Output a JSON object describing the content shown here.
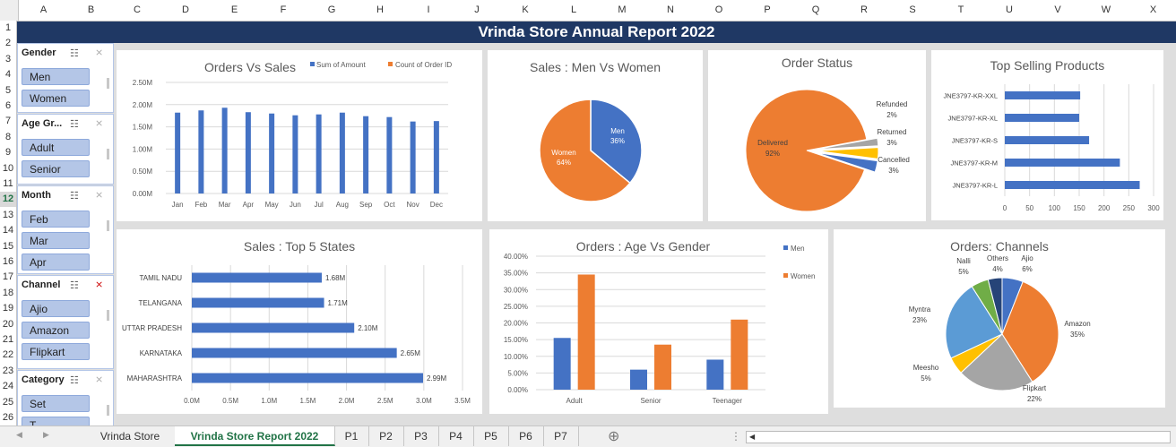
{
  "columns": [
    "A",
    "B",
    "C",
    "D",
    "E",
    "F",
    "G",
    "H",
    "I",
    "J",
    "K",
    "L",
    "M",
    "N",
    "O",
    "P",
    "Q",
    "R",
    "S",
    "T",
    "U",
    "V",
    "W",
    "X"
  ],
  "rows": [
    "1",
    "2",
    "3",
    "4",
    "5",
    "6",
    "7",
    "8",
    "9",
    "10",
    "11",
    "12",
    "13",
    "14",
    "15",
    "16",
    "17",
    "18",
    "19",
    "20",
    "21",
    "22",
    "23",
    "24",
    "25",
    "26"
  ],
  "selected_row": "12",
  "report_title": "Vrinda Store Annual Report 2022",
  "slicers": [
    {
      "title": "Gender",
      "items": [
        "Men",
        "Women"
      ]
    },
    {
      "title": "Age Gr...",
      "items": [
        "Adult",
        "Senior"
      ]
    },
    {
      "title": "Month",
      "items": [
        "Feb",
        "Mar",
        "Apr"
      ]
    },
    {
      "title": "Channel",
      "items": [
        "Ajio",
        "Amazon",
        "Flipkart"
      ]
    },
    {
      "title": "Category",
      "items": [
        "Set",
        "T..."
      ]
    }
  ],
  "tabs": [
    "Vrinda Store",
    "Vrinda Store Report 2022",
    "P1",
    "P2",
    "P3",
    "P4",
    "P5",
    "P6",
    "P7"
  ],
  "active_tab": "Vrinda Store Report 2022",
  "add_sheet": "⊕",
  "colors": {
    "blue": "#4472c4",
    "orange": "#ed7d31",
    "gray": "#a5a5a5",
    "yellow": "#ffc000",
    "lightblue": "#5b9bd5",
    "green": "#70ad47",
    "navy": "#264478",
    "title": "#1f3864"
  },
  "chart_data": [
    {
      "type": "bar",
      "title": "Orders Vs Sales",
      "categories": [
        "Jan",
        "Feb",
        "Mar",
        "Apr",
        "May",
        "Jun",
        "Jul",
        "Aug",
        "Sep",
        "Oct",
        "Nov",
        "Dec"
      ],
      "series": [
        {
          "name": "Sum of Amount",
          "values": [
            1.82,
            1.87,
            1.93,
            1.83,
            1.8,
            1.76,
            1.78,
            1.82,
            1.74,
            1.72,
            1.62,
            1.63
          ]
        },
        {
          "name": "Count of Order ID",
          "values": [
            0,
            0,
            0,
            0,
            0,
            0,
            0,
            0,
            0,
            0,
            0,
            0
          ]
        }
      ],
      "yticks": [
        "0.00M",
        "0.50M",
        "1.00M",
        "1.50M",
        "2.00M",
        "2.50M"
      ],
      "ylim": [
        0,
        2.5
      ],
      "legend": "top-right"
    },
    {
      "type": "pie",
      "title": "Sales : Men Vs Women",
      "labels": [
        "Men",
        "Women"
      ],
      "values": [
        36,
        64
      ],
      "value_labels": [
        "36%",
        "64%"
      ]
    },
    {
      "type": "pie",
      "title": "Order Status",
      "labels": [
        "Delivered",
        "Refunded",
        "Returned",
        "Cancelled"
      ],
      "values": [
        92,
        2,
        3,
        3
      ],
      "value_labels": [
        "92%",
        "2%",
        "3%",
        "3%"
      ]
    },
    {
      "type": "bar",
      "orientation": "horizontal",
      "title": "Top Selling Products",
      "categories": [
        "JNE3797-KR-XXL",
        "JNE3797-KR-XL",
        "JNE3797-KR-S",
        "JNE3797-KR-M",
        "JNE3797-KR-L"
      ],
      "values": [
        152,
        150,
        170,
        232,
        272
      ],
      "xticks": [
        "0",
        "50",
        "100",
        "150",
        "200",
        "250",
        "300"
      ],
      "xlim": [
        0,
        300
      ]
    },
    {
      "type": "bar",
      "orientation": "horizontal",
      "title": "Sales : Top 5 States",
      "categories": [
        "TAMIL NADU",
        "TELANGANA",
        "UTTAR PRADESH",
        "KARNATAKA",
        "MAHARASHTRA"
      ],
      "values": [
        1.68,
        1.71,
        2.1,
        2.65,
        2.99
      ],
      "value_labels": [
        "1.68M",
        "1.71M",
        "2.10M",
        "2.65M",
        "2.99M"
      ],
      "xticks": [
        "0.0M",
        "0.5M",
        "1.0M",
        "1.5M",
        "2.0M",
        "2.5M",
        "3.0M",
        "3.5M"
      ],
      "xlim": [
        0,
        3.5
      ]
    },
    {
      "type": "bar",
      "title": "Orders : Age Vs Gender",
      "categories": [
        "Adult",
        "Senior",
        "Teenager"
      ],
      "series": [
        {
          "name": "Men",
          "values": [
            15.5,
            6,
            9
          ]
        },
        {
          "name": "Women",
          "values": [
            34.5,
            13.5,
            21
          ]
        }
      ],
      "yticks": [
        "0.00%",
        "5.00%",
        "10.00%",
        "15.00%",
        "20.00%",
        "25.00%",
        "30.00%",
        "35.00%",
        "40.00%"
      ],
      "ylim": [
        0,
        40
      ],
      "legend": "right"
    },
    {
      "type": "pie",
      "title": "Orders: Channels",
      "labels": [
        "Ajio",
        "Amazon",
        "Flipkart",
        "Meesho",
        "Myntra",
        "Nalli",
        "Others"
      ],
      "values": [
        6,
        35,
        22,
        5,
        23,
        5,
        4
      ],
      "value_labels": [
        "6%",
        "35%",
        "22%",
        "5%",
        "23%",
        "5%",
        "4%"
      ]
    }
  ]
}
